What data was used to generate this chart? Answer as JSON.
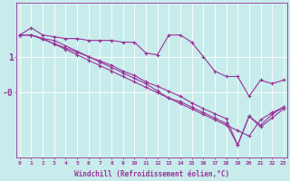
{
  "xlabel": "Windchill (Refroidissement éolien,°C)",
  "bg_color": "#c8ecec",
  "line_color": "#993399",
  "grid_color": "#ffffff",
  "x_ticks": [
    0,
    1,
    2,
    3,
    4,
    5,
    6,
    7,
    8,
    9,
    10,
    11,
    12,
    13,
    14,
    15,
    16,
    17,
    18,
    19,
    20,
    21,
    22,
    23
  ],
  "ylim": [
    -1.8,
    2.5
  ],
  "xlim": [
    -0.3,
    23.3
  ],
  "series": [
    [
      1.6,
      1.8,
      1.6,
      1.55,
      1.5,
      1.5,
      1.45,
      1.45,
      1.45,
      1.4,
      1.4,
      1.1,
      1.05,
      1.6,
      1.6,
      1.4,
      1.0,
      0.6,
      0.45,
      0.45,
      -0.1,
      0.35,
      0.25,
      0.35
    ],
    [
      1.6,
      1.6,
      1.5,
      1.45,
      1.3,
      1.15,
      1.0,
      0.85,
      0.7,
      0.55,
      0.4,
      0.25,
      0.05,
      -0.15,
      -0.25,
      -0.4,
      -0.55,
      -0.7,
      -0.85,
      -1.45,
      -0.65,
      -0.95,
      -0.7,
      -0.45
    ],
    [
      1.6,
      1.6,
      1.5,
      1.35,
      1.2,
      1.05,
      0.9,
      0.75,
      0.6,
      0.45,
      0.3,
      0.15,
      0.0,
      -0.15,
      -0.3,
      -0.45,
      -0.6,
      -0.75,
      -0.9,
      -1.05,
      -1.2,
      -0.75,
      -0.55,
      -0.4
    ],
    [
      1.6,
      1.6,
      1.48,
      1.36,
      1.24,
      1.12,
      1.0,
      0.88,
      0.76,
      0.6,
      0.48,
      0.3,
      0.18,
      0.04,
      -0.1,
      -0.28,
      -0.44,
      -0.58,
      -0.72,
      -1.45,
      -0.65,
      -0.9,
      -0.6,
      -0.4
    ]
  ],
  "marker": "+",
  "markersize": 3.5,
  "linewidth": 0.8,
  "axis_fontsize": 5.5,
  "tick_fontsize": 4.5,
  "ytick_fontsize": 7
}
